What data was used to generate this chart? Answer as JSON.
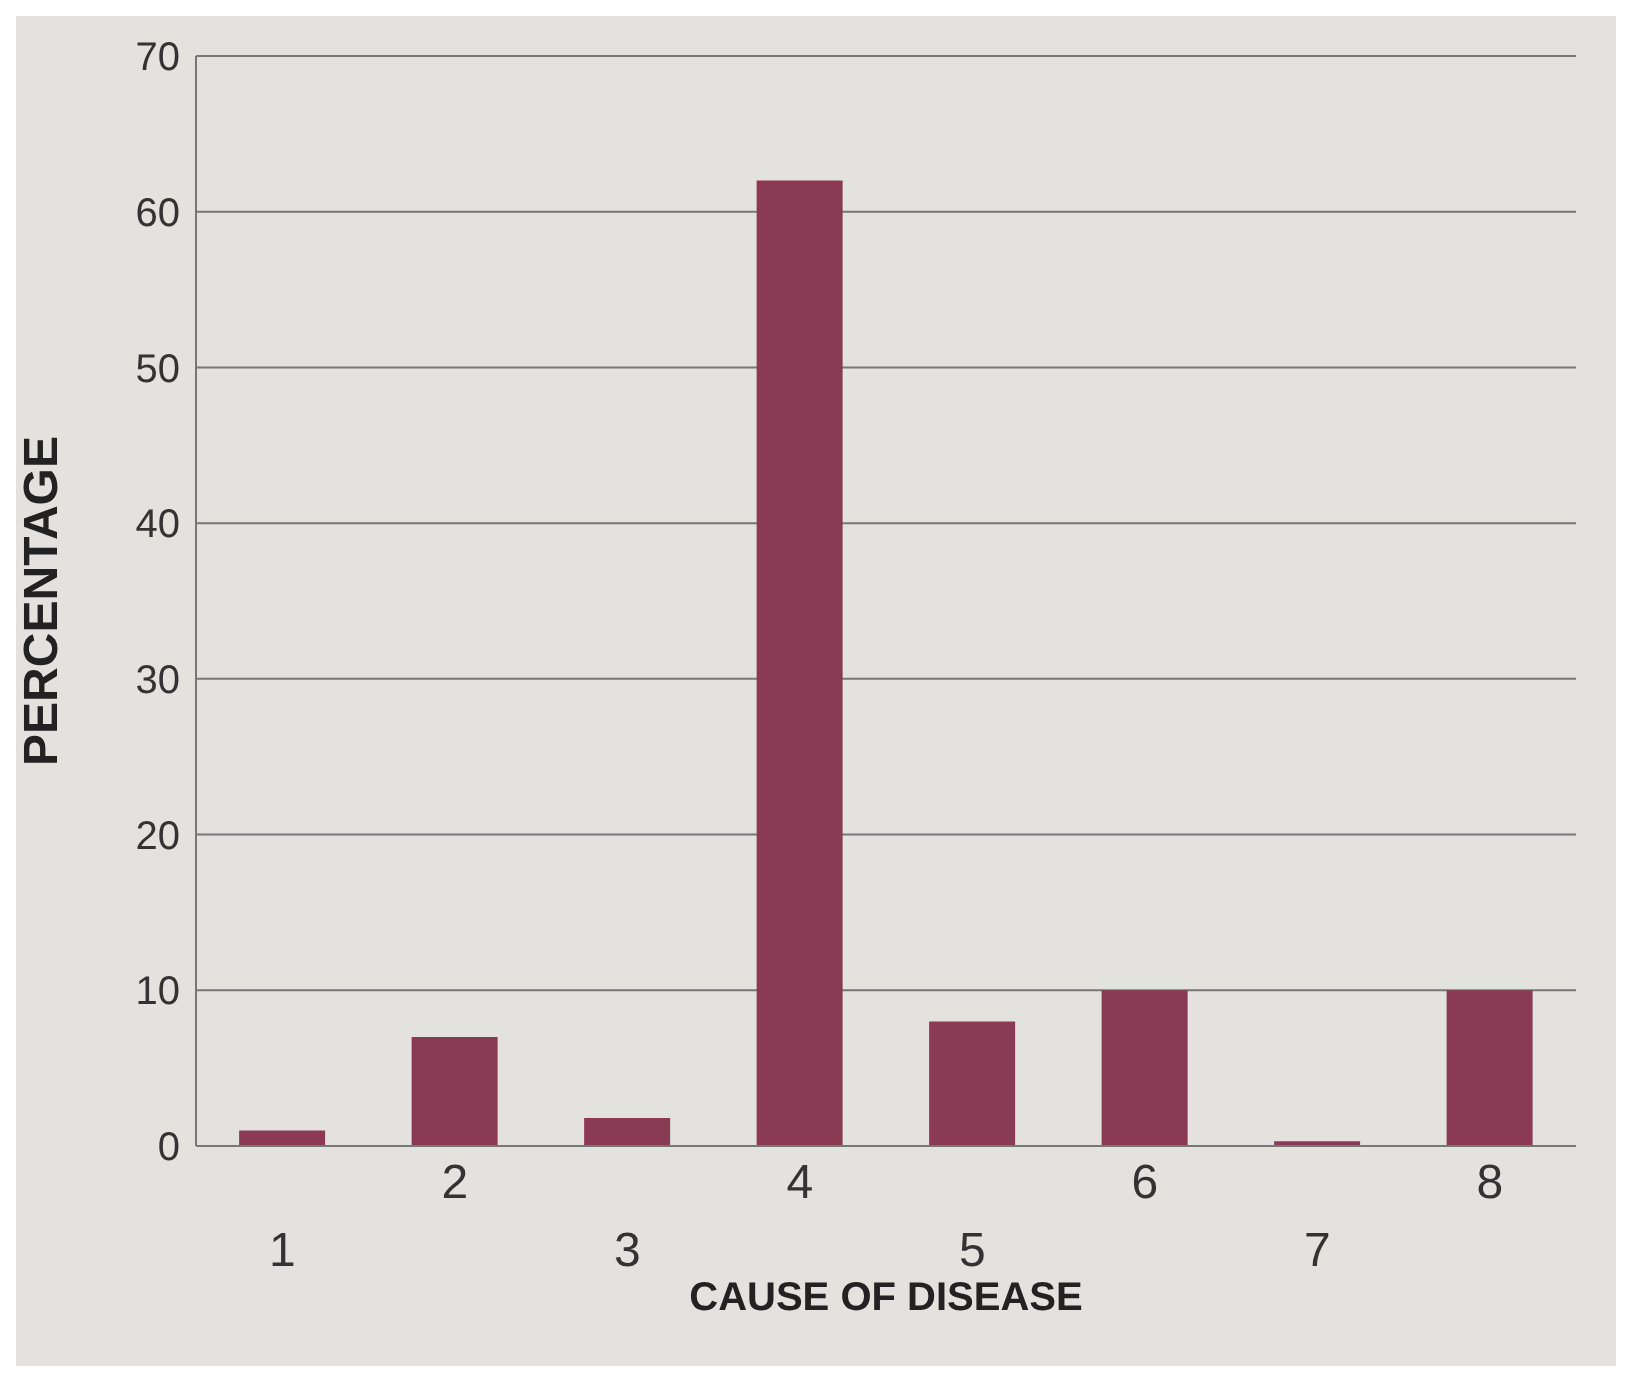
{
  "chart_data": {
    "type": "bar",
    "xlabel": "CAUSE OF DISEASE",
    "ylabel": "PERCENTAGE",
    "categories": [
      "1",
      "2",
      "3",
      "4",
      "5",
      "6",
      "7",
      "8"
    ],
    "values": [
      1,
      7,
      1.8,
      62,
      8,
      10,
      0.3,
      10
    ],
    "color": "#8b3a55",
    "ylim": [
      0,
      70
    ],
    "yticks": [
      0,
      10,
      20,
      30,
      40,
      50,
      60,
      70
    ],
    "grid": "y"
  }
}
